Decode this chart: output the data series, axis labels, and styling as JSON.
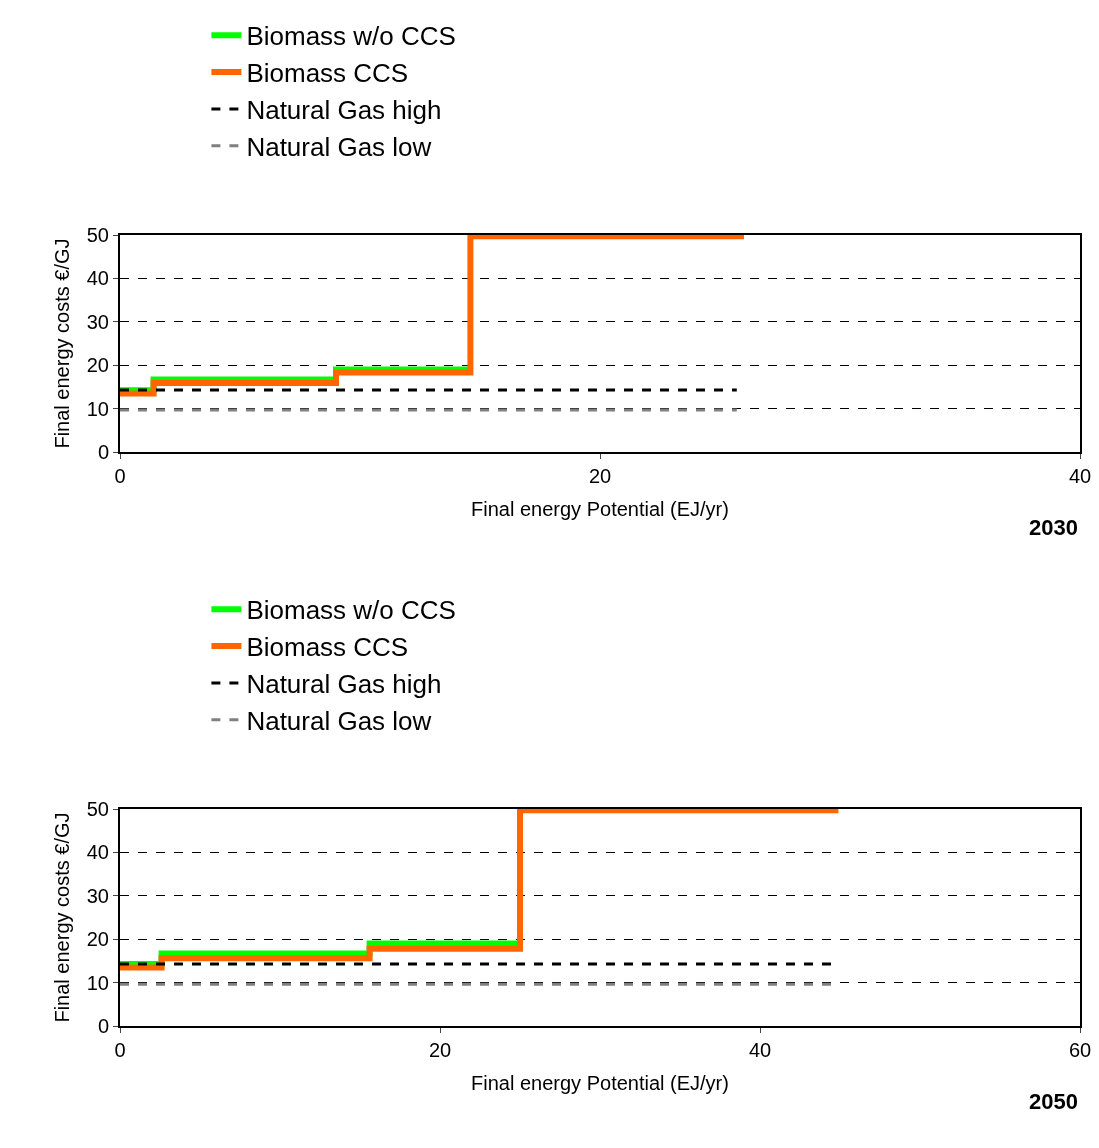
{
  "chart_data": [
    {
      "type": "step",
      "xlabel": "Final energy Potential (EJ/yr)",
      "ylabel": "Final energy costs €/GJ",
      "xlim": [
        0,
        40
      ],
      "xticks": [
        0,
        20,
        40
      ],
      "ylim": [
        0,
        50
      ],
      "yticks": [
        0,
        10,
        20,
        30,
        40,
        50
      ],
      "grid": "y",
      "legend": "top",
      "line_style": "solid",
      "marker": "none",
      "annotations": [
        "2030"
      ],
      "series": [
        {
          "name": "Biomass w/o CCS",
          "color": "#00ff00",
          "x": [
            0,
            1.4,
            9,
            14.6
          ],
          "values": [
            14.2,
            16.7,
            19.0,
            19.0
          ]
        },
        {
          "name": "Biomass CCS",
          "color": "#ff6600",
          "x": [
            0,
            1.4,
            9,
            14.6,
            26
          ],
          "values": [
            13.5,
            15.9,
            18.3,
            49.7,
            49.7
          ]
        },
        {
          "name": "Natural Gas high",
          "color": "#000000",
          "line_style": "dashed",
          "x": [
            0,
            25.7
          ],
          "values": [
            14.3,
            14.3
          ]
        },
        {
          "name": "Natural Gas low",
          "color": "#808080",
          "line_style": "dashed",
          "x": [
            0,
            25.7
          ],
          "values": [
            9.7,
            9.7
          ]
        }
      ]
    },
    {
      "type": "step",
      "xlabel": "Final energy Potential (EJ/yr)",
      "ylabel": "Final energy costs €/GJ",
      "xlim": [
        0,
        60
      ],
      "xticks": [
        0,
        20,
        40,
        60
      ],
      "ylim": [
        0,
        50
      ],
      "yticks": [
        0,
        10,
        20,
        30,
        40,
        50
      ],
      "grid": "y",
      "legend": "top",
      "line_style": "solid",
      "marker": "none",
      "annotations": [
        "2050"
      ],
      "series": [
        {
          "name": "Biomass w/o CCS",
          "color": "#00ff00",
          "x": [
            0,
            2.6,
            15.6,
            25.0
          ],
          "values": [
            14.3,
            16.7,
            19.0,
            19.0
          ]
        },
        {
          "name": "Biomass CCS",
          "color": "#ff6600",
          "x": [
            0,
            2.6,
            15.6,
            25.0,
            44.9
          ],
          "values": [
            13.5,
            15.6,
            17.8,
            49.7,
            49.7
          ]
        },
        {
          "name": "Natural Gas high",
          "color": "#000000",
          "line_style": "dashed",
          "x": [
            0,
            44.5
          ],
          "values": [
            14.3,
            14.3
          ]
        },
        {
          "name": "Natural Gas low",
          "color": "#808080",
          "line_style": "dashed",
          "x": [
            0,
            44.5
          ],
          "values": [
            9.6,
            9.6
          ]
        }
      ]
    }
  ]
}
